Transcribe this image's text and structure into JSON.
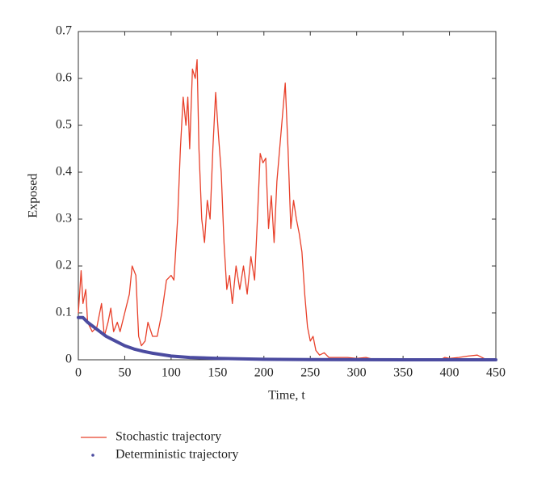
{
  "chart_data": {
    "type": "line",
    "xlabel": "Time, t",
    "ylabel": "Exposed",
    "xlim": [
      0,
      450
    ],
    "xticks": [
      0,
      50,
      100,
      150,
      200,
      250,
      300,
      350,
      400,
      450
    ],
    "ylim": [
      0,
      0.7
    ],
    "yticks": [
      0,
      0.1,
      0.2,
      0.3,
      0.4,
      0.5,
      0.6,
      0.7
    ],
    "series": [
      {
        "name": "Stochastic trajectory",
        "color": "#e8402a",
        "style": "line",
        "x": [
          0,
          3,
          5,
          8,
          10,
          15,
          20,
          25,
          28,
          32,
          35,
          38,
          42,
          45,
          50,
          55,
          58,
          62,
          65,
          68,
          72,
          75,
          80,
          85,
          90,
          95,
          100,
          103,
          107,
          110,
          113,
          116,
          118,
          120,
          123,
          126,
          128,
          130,
          133,
          136,
          139,
          142,
          145,
          148,
          151,
          154,
          157,
          160,
          163,
          166,
          170,
          174,
          178,
          182,
          186,
          190,
          193,
          196,
          199,
          202,
          205,
          208,
          211,
          214,
          217,
          220,
          223,
          226,
          229,
          232,
          235,
          238,
          241,
          244,
          247,
          250,
          253,
          256,
          260,
          265,
          270,
          280,
          290,
          300,
          310,
          320,
          350,
          390,
          395,
          400,
          410,
          420,
          430,
          435,
          440,
          450
        ],
        "values": [
          0.1,
          0.19,
          0.12,
          0.15,
          0.08,
          0.06,
          0.07,
          0.12,
          0.05,
          0.08,
          0.11,
          0.06,
          0.08,
          0.06,
          0.1,
          0.14,
          0.2,
          0.18,
          0.05,
          0.03,
          0.04,
          0.08,
          0.05,
          0.05,
          0.1,
          0.17,
          0.18,
          0.17,
          0.3,
          0.45,
          0.56,
          0.5,
          0.56,
          0.45,
          0.62,
          0.6,
          0.64,
          0.45,
          0.3,
          0.25,
          0.34,
          0.3,
          0.45,
          0.57,
          0.48,
          0.4,
          0.25,
          0.15,
          0.18,
          0.12,
          0.2,
          0.15,
          0.2,
          0.14,
          0.22,
          0.17,
          0.3,
          0.44,
          0.42,
          0.43,
          0.28,
          0.35,
          0.25,
          0.38,
          0.45,
          0.52,
          0.59,
          0.45,
          0.28,
          0.34,
          0.3,
          0.27,
          0.23,
          0.14,
          0.07,
          0.04,
          0.05,
          0.02,
          0.01,
          0.015,
          0.005,
          0.005,
          0.005,
          0.003,
          0.005,
          0,
          0,
          0,
          0.005,
          0.003,
          0.005,
          0.008,
          0.01,
          0.005,
          0,
          0
        ]
      },
      {
        "name": "Deterministic trajectory",
        "color": "#4b4ba0",
        "style": "dots",
        "x": [
          0,
          5,
          10,
          20,
          30,
          40,
          50,
          60,
          70,
          80,
          100,
          120,
          150,
          200,
          250,
          300,
          350,
          400,
          450
        ],
        "values": [
          0.09,
          0.09,
          0.08,
          0.065,
          0.05,
          0.04,
          0.03,
          0.023,
          0.018,
          0.014,
          0.008,
          0.005,
          0.003,
          0.001,
          0.0005,
          0.0002,
          0.0001,
          0,
          0
        ]
      }
    ]
  }
}
